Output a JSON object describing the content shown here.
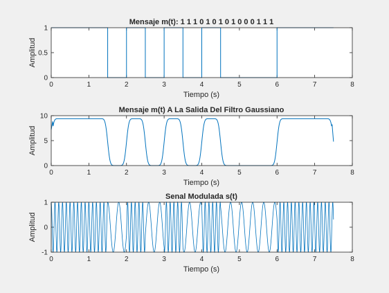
{
  "figure": {
    "background": "#f0f0f0",
    "axes_background": "#ffffff",
    "line_color": "#0072bd"
  },
  "chart_data": [
    {
      "type": "line",
      "title": "Mensaje m(t): 1 1 1 0 1 0 1 0 1 0 0 0 1 1 1",
      "xlabel": "Tiempo (s)",
      "ylabel": "Amplitud",
      "xlim": [
        0,
        8
      ],
      "ylim": [
        0,
        1
      ],
      "xticks": [
        "0",
        "1",
        "2",
        "3",
        "4",
        "5",
        "6",
        "7",
        "8"
      ],
      "yticks": [
        "0",
        "0.5",
        "1"
      ],
      "ytick_values": [
        0,
        0.5,
        1
      ],
      "bits": [
        1,
        1,
        1,
        0,
        1,
        0,
        1,
        0,
        1,
        0,
        0,
        0,
        1,
        1,
        1
      ],
      "bit_duration": 0.5,
      "signal": "digital_message",
      "t_start": 0,
      "t_end": 7.5
    },
    {
      "type": "line",
      "title": "Mensaje m(t) A La Salida Del Filtro Gaussiano",
      "xlabel": "Tiempo (s)",
      "ylabel": "Amplitud",
      "xlim": [
        0,
        8
      ],
      "ylim": [
        0,
        10
      ],
      "xticks": [
        "0",
        "1",
        "2",
        "3",
        "4",
        "5",
        "6",
        "7",
        "8"
      ],
      "yticks": [
        "0",
        "5",
        "10"
      ],
      "ytick_values": [
        0,
        5,
        10
      ],
      "signal": "gaussian_filtered",
      "high_level": 9.4,
      "low_level": 0,
      "start_value": 7.2,
      "end_value": 4.8,
      "t_start": 0,
      "t_end": 7.5
    },
    {
      "type": "line",
      "title": "Senal Modulada s(t)",
      "xlabel": "Tiempo (s)",
      "ylabel": "Amplitud",
      "xlim": [
        0,
        8
      ],
      "ylim": [
        -1,
        1
      ],
      "xticks": [
        "0",
        "1",
        "2",
        "3",
        "4",
        "5",
        "6",
        "7",
        "8"
      ],
      "yticks": [
        "-1",
        "0",
        "1"
      ],
      "ytick_values": [
        -1,
        0,
        1
      ],
      "signal": "gmsk_modulated",
      "freq_high_hz": 10,
      "freq_low_hz": 3.4,
      "t_start": 0,
      "t_end": 7.5
    }
  ]
}
